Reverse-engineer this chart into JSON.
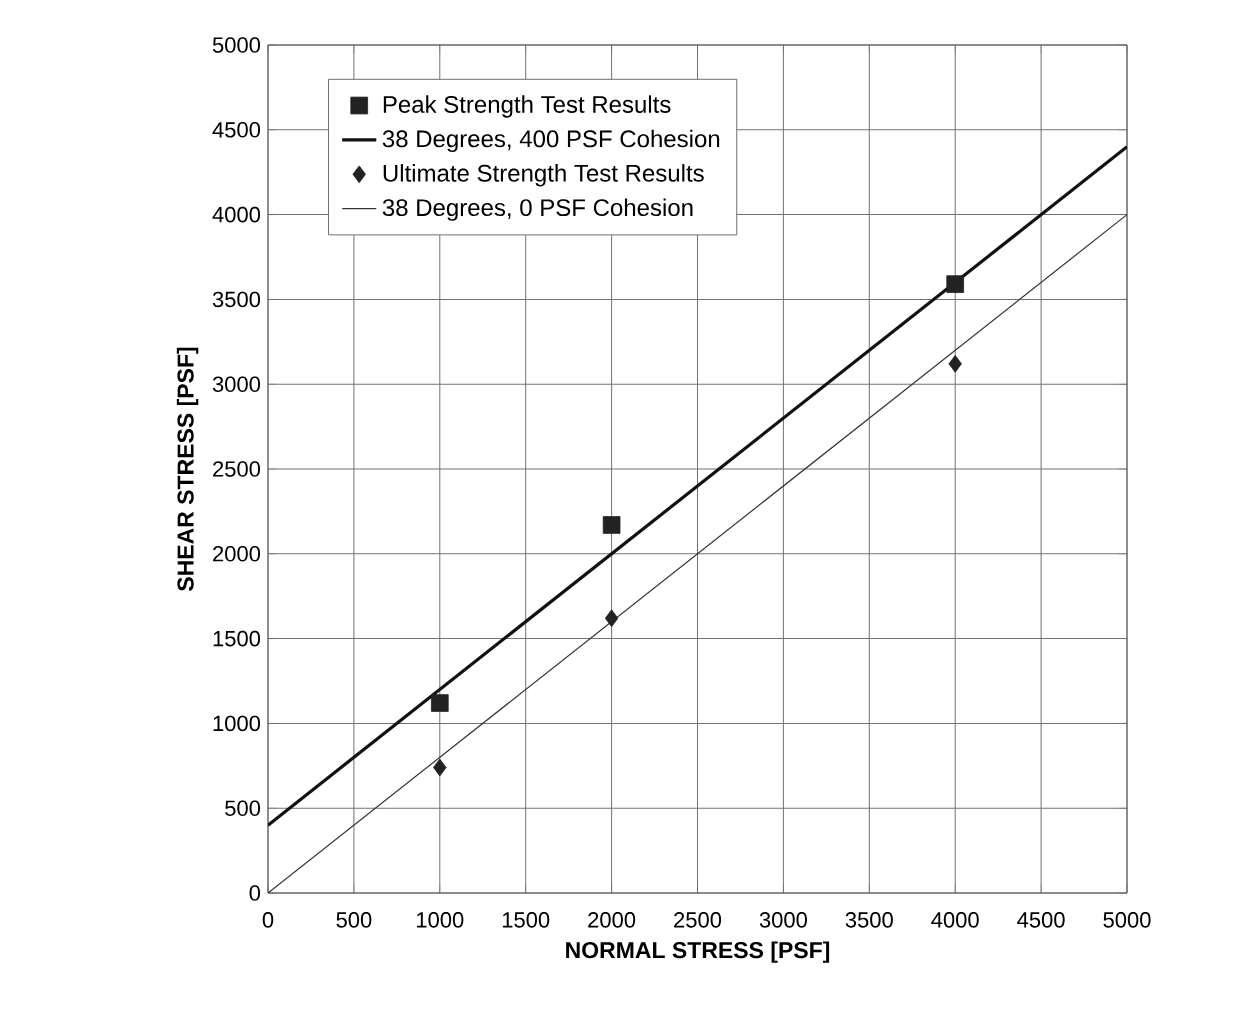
{
  "chart_data": {
    "type": "scatter",
    "xlabel": "NORMAL STRESS [PSF]",
    "ylabel": "SHEAR STRESS [PSF]",
    "xlim": [
      0,
      5000
    ],
    "ylim": [
      0,
      5000
    ],
    "xticks": [
      0,
      500,
      1000,
      1500,
      2000,
      2500,
      3000,
      3500,
      4000,
      4500,
      5000
    ],
    "yticks": [
      0,
      500,
      1000,
      1500,
      2000,
      2500,
      3000,
      3500,
      4000,
      4500,
      5000
    ],
    "grid": true,
    "legend": "top left",
    "series": [
      {
        "name": "Peak Strength Test Results",
        "marker": "square",
        "color": "#222222",
        "x": [
          1000,
          2000,
          4000
        ],
        "values": [
          1120,
          2170,
          3590
        ]
      },
      {
        "name": "38 Degrees, 400 PSF Cohesion",
        "type": "line",
        "line_style": "solid",
        "color": "#111111",
        "x": [
          0,
          5000
        ],
        "values": [
          400,
          4400
        ]
      },
      {
        "name": "Ultimate Strength Test Results",
        "marker": "diamond",
        "color": "#222222",
        "x": [
          1000,
          2000,
          4000
        ],
        "values": [
          740,
          1620,
          3120
        ]
      },
      {
        "name": "38 Degrees, 0 PSF Cohesion",
        "type": "line",
        "line_style": "solid",
        "color": "#333333",
        "x": [
          0,
          5000
        ],
        "values": [
          0,
          4000
        ]
      }
    ]
  }
}
